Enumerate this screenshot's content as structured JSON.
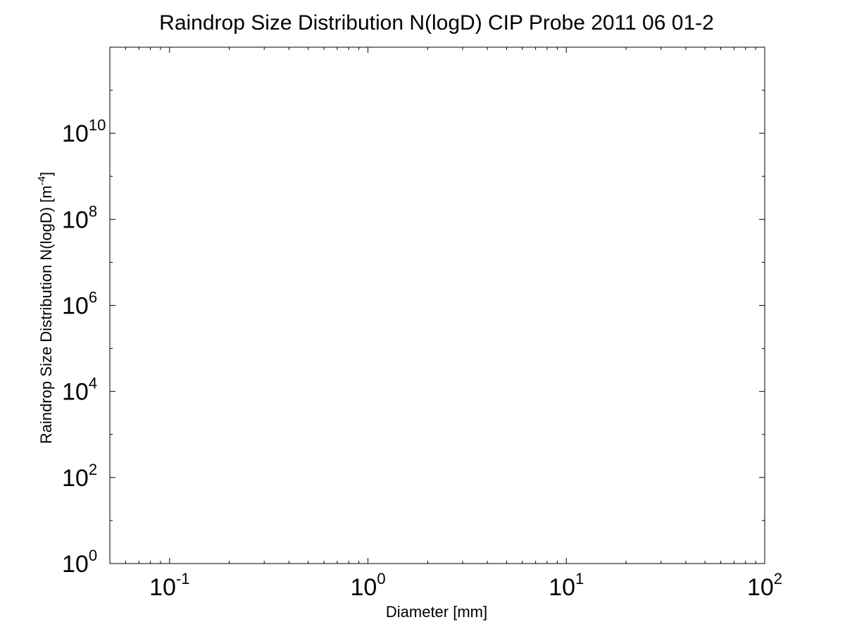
{
  "chart_data": {
    "type": "line",
    "title": "Raindrop Size Distribution N(logD) CIP Probe 2011 06 01-2",
    "xlabel": "Diameter [mm]",
    "ylabel": "Raindrop Size Distribution N(logD) [m",
    "ylabel_exp": "-4",
    "ylabel_end": "]",
    "xscale": "log",
    "yscale": "log",
    "xlim": [
      0.05,
      100
    ],
    "ylim": [
      1,
      1000000000000
    ],
    "grid": false,
    "series": [],
    "x_ticks": [
      {
        "value": 0.1,
        "base": "10",
        "exp": "-1"
      },
      {
        "value": 1,
        "base": "10",
        "exp": "0"
      },
      {
        "value": 10,
        "base": "10",
        "exp": "1"
      },
      {
        "value": 100,
        "base": "10",
        "exp": "2"
      }
    ],
    "y_ticks": [
      {
        "value": 1,
        "base": "10",
        "exp": "0"
      },
      {
        "value": 100,
        "base": "10",
        "exp": "2"
      },
      {
        "value": 10000,
        "base": "10",
        "exp": "4"
      },
      {
        "value": 1000000,
        "base": "10",
        "exp": "6"
      },
      {
        "value": 100000000,
        "base": "10",
        "exp": "8"
      },
      {
        "value": 10000000000,
        "base": "10",
        "exp": "10"
      }
    ]
  }
}
